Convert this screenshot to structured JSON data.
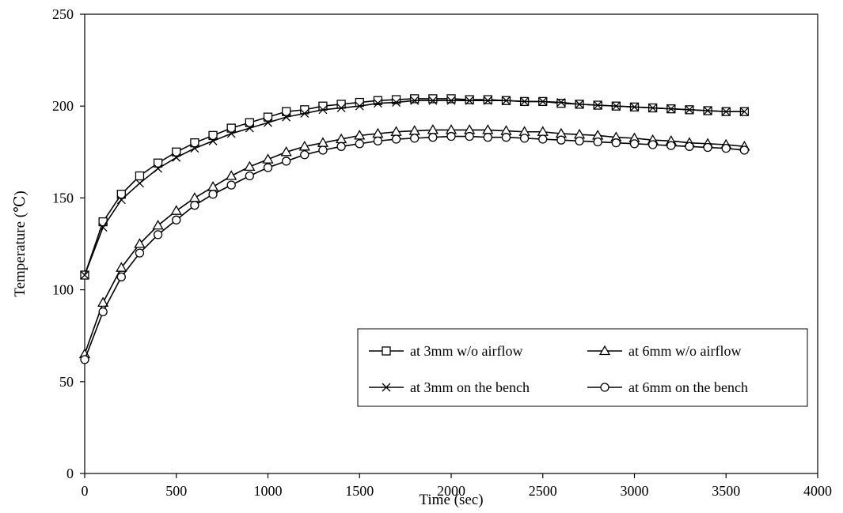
{
  "chart_data": {
    "type": "line",
    "title": "",
    "xlabel": "Time (sec)",
    "ylabel": "Temperature (℃)",
    "xlim": [
      0,
      4000
    ],
    "ylim": [
      0,
      250
    ],
    "x_ticks": [
      0,
      500,
      1000,
      1500,
      2000,
      2500,
      3000,
      3500,
      4000
    ],
    "y_ticks": [
      0,
      50,
      100,
      150,
      200,
      250
    ],
    "grid": false,
    "legend_position": "bottom-right",
    "x": [
      0,
      100,
      200,
      300,
      400,
      500,
      600,
      700,
      800,
      900,
      1000,
      1100,
      1200,
      1300,
      1400,
      1500,
      1600,
      1700,
      1800,
      1900,
      2000,
      2100,
      2200,
      2300,
      2400,
      2500,
      2600,
      2700,
      2800,
      2900,
      3000,
      3100,
      3200,
      3300,
      3400,
      3500,
      3600
    ],
    "series": [
      {
        "name": "at 3mm w/o airflow",
        "marker": "square",
        "values": [
          108,
          137,
          152,
          162,
          169,
          175,
          180,
          184,
          188,
          191,
          194,
          197,
          198,
          200,
          201,
          202,
          203,
          203.5,
          204,
          204,
          204,
          203.5,
          203.5,
          203,
          202.5,
          202.5,
          201.5,
          201,
          200.5,
          200,
          199.5,
          199,
          198.5,
          198,
          197.5,
          197,
          197
        ]
      },
      {
        "name": "at 3mm on the bench",
        "marker": "x",
        "values": [
          108,
          134,
          149,
          158,
          166,
          172,
          177,
          181,
          185,
          188,
          191,
          194,
          196,
          198,
          199,
          200,
          201.5,
          202,
          203,
          203,
          203,
          203,
          203,
          203,
          202.5,
          202.5,
          202,
          201,
          200.5,
          200,
          199.5,
          199,
          198.5,
          198,
          197.5,
          197,
          197
        ]
      },
      {
        "name": "at 6mm w/o airflow",
        "marker": "triangle",
        "values": [
          65,
          93,
          112,
          125,
          135,
          143,
          150,
          156,
          162,
          167,
          171,
          175,
          178,
          180,
          182,
          184,
          185,
          186,
          186.5,
          187,
          187,
          187,
          187,
          186.5,
          186,
          186,
          185,
          184.5,
          184,
          183,
          182.5,
          181.5,
          181,
          180,
          179.5,
          179,
          178
        ]
      },
      {
        "name": "at 6mm on the bench",
        "marker": "circle",
        "values": [
          62,
          88,
          107,
          120,
          130,
          138,
          146,
          152,
          157,
          162,
          166.5,
          170,
          173.5,
          176,
          178,
          179.5,
          181,
          182,
          182.5,
          183,
          183.5,
          183.5,
          183,
          183,
          182.5,
          182,
          181.5,
          181,
          180.5,
          180,
          179.5,
          179,
          178.5,
          178,
          177.5,
          177,
          176
        ]
      }
    ],
    "legend_order": [
      "at 3mm w/o airflow",
      "at 6mm w/o airflow",
      "at 3mm on the bench",
      "at 6mm on the bench"
    ],
    "colors": {
      "line": "#000000",
      "marker_fill": "#ffffff"
    }
  }
}
